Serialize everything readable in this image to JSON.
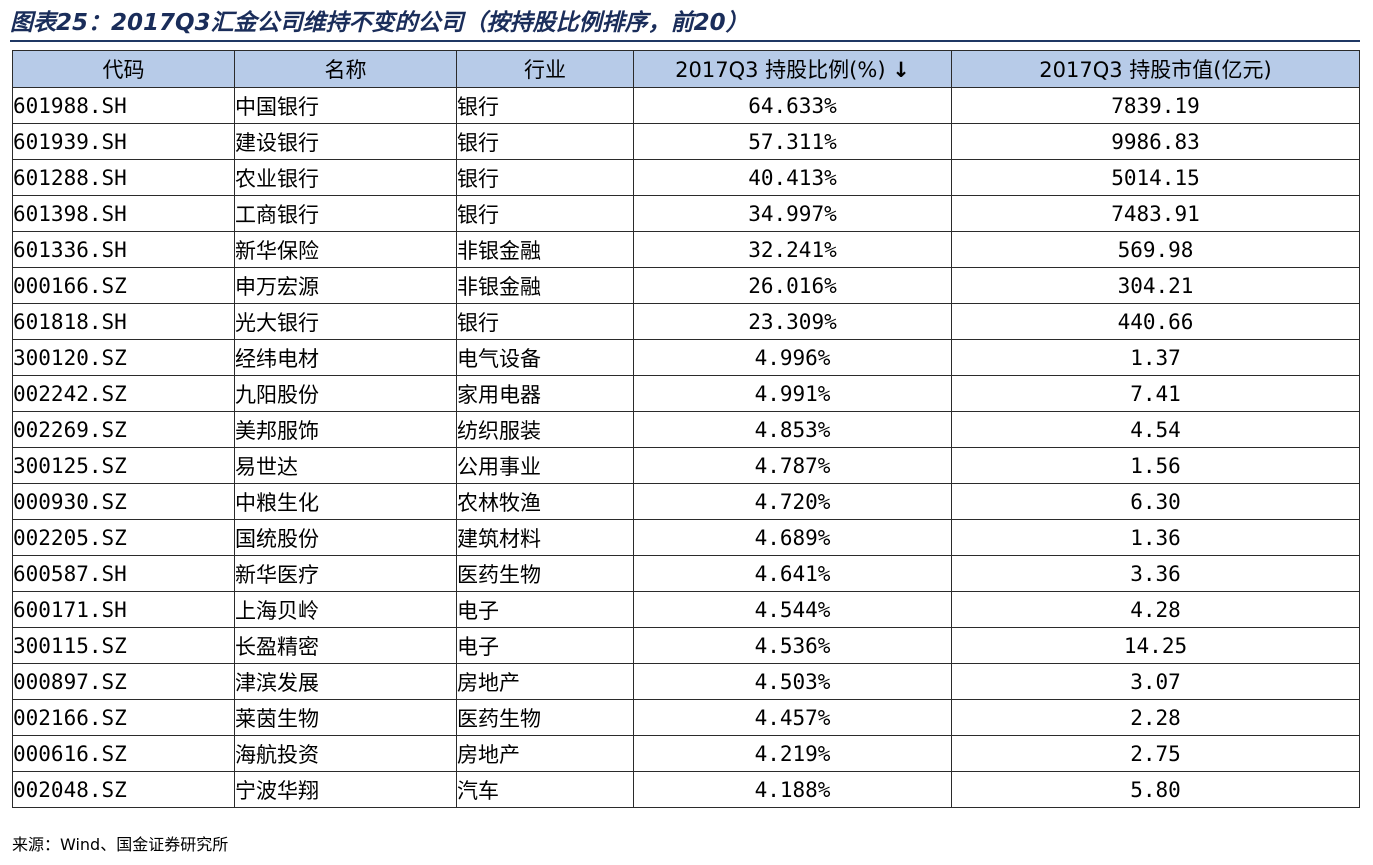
{
  "title": "图表25：2017Q3汇金公司维持不变的公司（按持股比例排序，前20）",
  "headers": [
    "代码",
    "名称",
    "行业",
    "2017Q3 持股比例(%)",
    "2017Q3 持股市值(亿元)"
  ],
  "sort_icon": "arrow-down-icon",
  "sort_glyph": "↓",
  "rows": [
    [
      "601988.SH",
      "中国银行",
      "银行",
      "64.633%",
      "7839.19"
    ],
    [
      "601939.SH",
      "建设银行",
      "银行",
      "57.311%",
      "9986.83"
    ],
    [
      "601288.SH",
      "农业银行",
      "银行",
      "40.413%",
      "5014.15"
    ],
    [
      "601398.SH",
      "工商银行",
      "银行",
      "34.997%",
      "7483.91"
    ],
    [
      "601336.SH",
      "新华保险",
      "非银金融",
      "32.241%",
      "569.98"
    ],
    [
      "000166.SZ",
      "申万宏源",
      "非银金融",
      "26.016%",
      "304.21"
    ],
    [
      "601818.SH",
      "光大银行",
      "银行",
      "23.309%",
      "440.66"
    ],
    [
      "300120.SZ",
      "经纬电材",
      "电气设备",
      "4.996%",
      "1.37"
    ],
    [
      "002242.SZ",
      "九阳股份",
      "家用电器",
      "4.991%",
      "7.41"
    ],
    [
      "002269.SZ",
      "美邦服饰",
      "纺织服装",
      "4.853%",
      "4.54"
    ],
    [
      "300125.SZ",
      "易世达",
      "公用事业",
      "4.787%",
      "1.56"
    ],
    [
      "000930.SZ",
      "中粮生化",
      "农林牧渔",
      "4.720%",
      "6.30"
    ],
    [
      "002205.SZ",
      "国统股份",
      "建筑材料",
      "4.689%",
      "1.36"
    ],
    [
      "600587.SH",
      "新华医疗",
      "医药生物",
      "4.641%",
      "3.36"
    ],
    [
      "600171.SH",
      "上海贝岭",
      "电子",
      "4.544%",
      "4.28"
    ],
    [
      "300115.SZ",
      "长盈精密",
      "电子",
      "4.536%",
      "14.25"
    ],
    [
      "000897.SZ",
      "津滨发展",
      "房地产",
      "4.503%",
      "3.07"
    ],
    [
      "002166.SZ",
      "莱茵生物",
      "医药生物",
      "4.457%",
      "2.28"
    ],
    [
      "000616.SZ",
      "海航投资",
      "房地产",
      "4.219%",
      "2.75"
    ],
    [
      "002048.SZ",
      "宁波华翔",
      "汽车",
      "4.188%",
      "5.80"
    ]
  ],
  "source": "来源：Wind、国金证券研究所",
  "colors": {
    "header_bg": "#b7cbe8",
    "title_color": "#1a2d5a",
    "border": "#2b2b2b"
  }
}
